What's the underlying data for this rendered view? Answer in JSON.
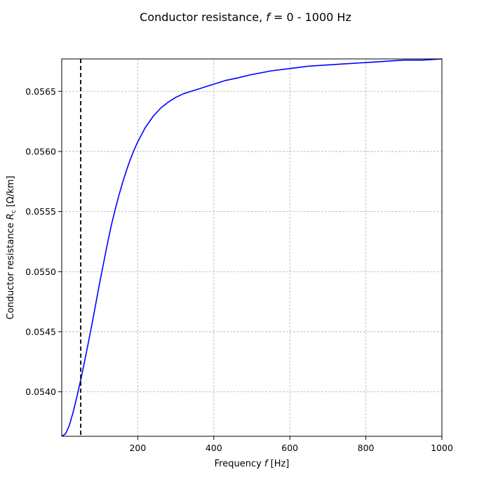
{
  "chart_data": {
    "type": "line",
    "title": {
      "prefix": "Conductor resistance, ",
      "symbol": "f",
      "suffix": " = 0 - 1000 Hz"
    },
    "xlabel": {
      "prefix": "Frequency ",
      "symbol": "f",
      "suffix": " [Hz]"
    },
    "ylabel": {
      "prefix": "Conductor resistance ",
      "symbol": "R",
      "subscript": "c",
      "suffix": " [Ω/km]"
    },
    "xlim": [
      0,
      1000
    ],
    "ylim": [
      0.05363,
      0.05677
    ],
    "xticks": [
      200,
      400,
      600,
      800,
      1000
    ],
    "xtick_labels": [
      "200",
      "400",
      "600",
      "800",
      "1000"
    ],
    "yticks": [
      0.054,
      0.0545,
      0.055,
      0.0555,
      0.056,
      0.0565
    ],
    "ytick_labels": [
      "0.0540",
      "0.0545",
      "0.0550",
      "0.0555",
      "0.0560",
      "0.0565"
    ],
    "grid": true,
    "series": [
      {
        "color": "#0000ff",
        "x": [
          0,
          10,
          20,
          30,
          40,
          50,
          60,
          70,
          80,
          90,
          100,
          110,
          120,
          130,
          140,
          150,
          160,
          170,
          180,
          190,
          200,
          220,
          240,
          260,
          280,
          300,
          320,
          340,
          360,
          380,
          400,
          430,
          460,
          500,
          550,
          600,
          650,
          700,
          750,
          800,
          850,
          900,
          950,
          1000
        ],
        "y": [
          0.05363,
          0.05365,
          0.05372,
          0.05383,
          0.05396,
          0.0541,
          0.05425,
          0.05441,
          0.05457,
          0.05474,
          0.05491,
          0.05507,
          0.05523,
          0.05538,
          0.05551,
          0.05563,
          0.05574,
          0.05584,
          0.05593,
          0.05601,
          0.05608,
          0.0562,
          0.05629,
          0.05636,
          0.05641,
          0.05645,
          0.05648,
          0.0565,
          0.05652,
          0.05654,
          0.05656,
          0.05659,
          0.05661,
          0.05664,
          0.05667,
          0.05669,
          0.05671,
          0.05672,
          0.05673,
          0.05674,
          0.05675,
          0.05676,
          0.05676,
          0.05677
        ]
      }
    ],
    "reference_line": {
      "x": 50,
      "color": "#000000",
      "style": "dashed"
    }
  }
}
